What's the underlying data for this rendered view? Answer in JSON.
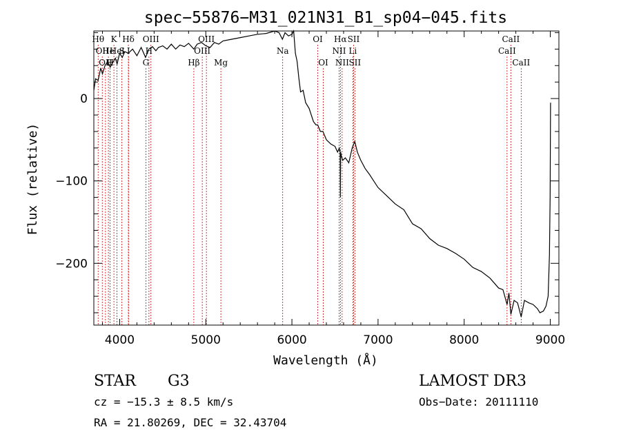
{
  "chart_data": {
    "type": "line",
    "title": "spec−55876−M31_021N31_B1_sp04−045.fits",
    "xlabel": "Wavelength (Å)",
    "ylabel": "Flux (relative)",
    "xlim": [
      3700,
      9100
    ],
    "ylim": [
      -275,
      82
    ],
    "xticks": [
      {
        "value": 4000,
        "label": "4000"
      },
      {
        "value": 5000,
        "label": "5000"
      },
      {
        "value": 6000,
        "label": "6000"
      },
      {
        "value": 7000,
        "label": "7000"
      },
      {
        "value": 8000,
        "label": "8000"
      },
      {
        "value": 9000,
        "label": "9000"
      }
    ],
    "yticks": [
      {
        "value": 0,
        "label": "0"
      },
      {
        "value": -100,
        "label": "−100"
      },
      {
        "value": -200,
        "label": "−200"
      }
    ],
    "series": [
      {
        "name": "spectrum",
        "x": [
          3700,
          3720,
          3750,
          3780,
          3800,
          3830,
          3860,
          3890,
          3920,
          3950,
          3970,
          4000,
          4030,
          4060,
          4100,
          4150,
          4200,
          4250,
          4300,
          4340,
          4380,
          4420,
          4450,
          4500,
          4550,
          4600,
          4650,
          4700,
          4750,
          4800,
          4861,
          4900,
          4950,
          5000,
          5050,
          5100,
          5150,
          5200,
          5300,
          5400,
          5500,
          5600,
          5700,
          5800,
          5850,
          5890,
          5920,
          5960,
          6000,
          6020,
          6040,
          6060,
          6080,
          6100,
          6130,
          6160,
          6200,
          6250,
          6280,
          6300,
          6330,
          6360,
          6400,
          6450,
          6500,
          6530,
          6550,
          6560,
          6563,
          6566,
          6575,
          6590,
          6620,
          6660,
          6700,
          6730,
          6760,
          6800,
          6850,
          6900,
          6950,
          7000,
          7100,
          7200,
          7300,
          7400,
          7500,
          7600,
          7700,
          7800,
          7900,
          8000,
          8100,
          8200,
          8300,
          8400,
          8450,
          8498,
          8520,
          8542,
          8580,
          8620,
          8662,
          8700,
          8750,
          8800,
          8850,
          8880,
          8920,
          8950,
          8975,
          8990,
          8998,
          9003
        ],
        "y": [
          10,
          24,
          22,
          37,
          30,
          40,
          45,
          38,
          44,
          49,
          42,
          55,
          50,
          57,
          55,
          60,
          52,
          62,
          50,
          60,
          63,
          58,
          62,
          64,
          60,
          66,
          60,
          65,
          63,
          67,
          60,
          66,
          68,
          64,
          62,
          68,
          66,
          70,
          72,
          74,
          76,
          78,
          79,
          82,
          80,
          72,
          80,
          76,
          78,
          82,
          55,
          45,
          25,
          8,
          10,
          -5,
          -12,
          -28,
          -32,
          -32,
          -40,
          -40,
          -50,
          -55,
          -58,
          -65,
          -60,
          -65,
          -120,
          -65,
          -70,
          -75,
          -72,
          -78,
          -60,
          -52,
          -65,
          -75,
          -85,
          -92,
          -100,
          -108,
          -118,
          -128,
          -135,
          -152,
          -158,
          -170,
          -178,
          -182,
          -188,
          -195,
          -205,
          -210,
          -218,
          -230,
          -232,
          -250,
          -236,
          -262,
          -245,
          -248,
          -265,
          -245,
          -248,
          -250,
          -255,
          -260,
          -258,
          -252,
          -240,
          -190,
          -118,
          -5
        ]
      }
    ],
    "line_markers": [
      {
        "wavelength": 3750,
        "label": "Hθ",
        "row": 0
      },
      {
        "wavelength": 3798,
        "label": "OII",
        "row": 1
      },
      {
        "wavelength": 3835,
        "label": "OII",
        "row": 2
      },
      {
        "wavelength": 3869,
        "label": "He",
        "row": 1
      },
      {
        "wavelength": 3889,
        "label": "H",
        "row": 2
      },
      {
        "wavelength": 3933,
        "label": "K",
        "row": 0
      },
      {
        "wavelength": 3968,
        "label": "Hel",
        "row": 1
      },
      {
        "wavelength": 4026,
        "label": "S",
        "row": 1
      },
      {
        "wavelength": 4101,
        "label": "Hδ",
        "row": 0
      },
      {
        "wavelength": 4103,
        "label": "I",
        "row": 1
      },
      {
        "wavelength": 4304,
        "label": "G",
        "row": 2
      },
      {
        "wavelength": 4340,
        "label": "H",
        "row": 1
      },
      {
        "wavelength": 4363,
        "label": "OIII",
        "row": 0
      },
      {
        "wavelength": 4861,
        "label": "Hβ",
        "row": 2
      },
      {
        "wavelength": 4959,
        "label": "OIII",
        "row": 1
      },
      {
        "wavelength": 5007,
        "label": "OIII",
        "row": 0
      },
      {
        "wavelength": 5175,
        "label": "Mg",
        "row": 2
      },
      {
        "wavelength": 5893,
        "label": "Na",
        "row": 1
      },
      {
        "wavelength": 6300,
        "label": "OI",
        "row": 0
      },
      {
        "wavelength": 6364,
        "label": "OI",
        "row": 2
      },
      {
        "wavelength": 6548,
        "label": "NII",
        "row": 1
      },
      {
        "wavelength": 6563,
        "label": "Hα",
        "row": 0
      },
      {
        "wavelength": 6583,
        "label": "NII",
        "row": 2
      },
      {
        "wavelength": 6707,
        "label": "Li",
        "row": 1
      },
      {
        "wavelength": 6716,
        "label": "SII",
        "row": 0
      },
      {
        "wavelength": 6731,
        "label": "SII",
        "row": 2
      },
      {
        "wavelength": 8498,
        "label": "CaII",
        "row": 1
      },
      {
        "wavelength": 8542,
        "label": "CaII",
        "row": 0
      },
      {
        "wavelength": 8662,
        "label": "CaII",
        "row": 2
      }
    ],
    "marker_color": "#cc0000"
  },
  "info": {
    "class": "STAR",
    "subclass": "G3",
    "survey": "LAMOST DR3",
    "cz": "cz = −15.3 ± 8.5 km/s",
    "obs_date": "Obs−Date: 20111110",
    "radec": "RA =  21.80269, DEC =  32.43704"
  }
}
